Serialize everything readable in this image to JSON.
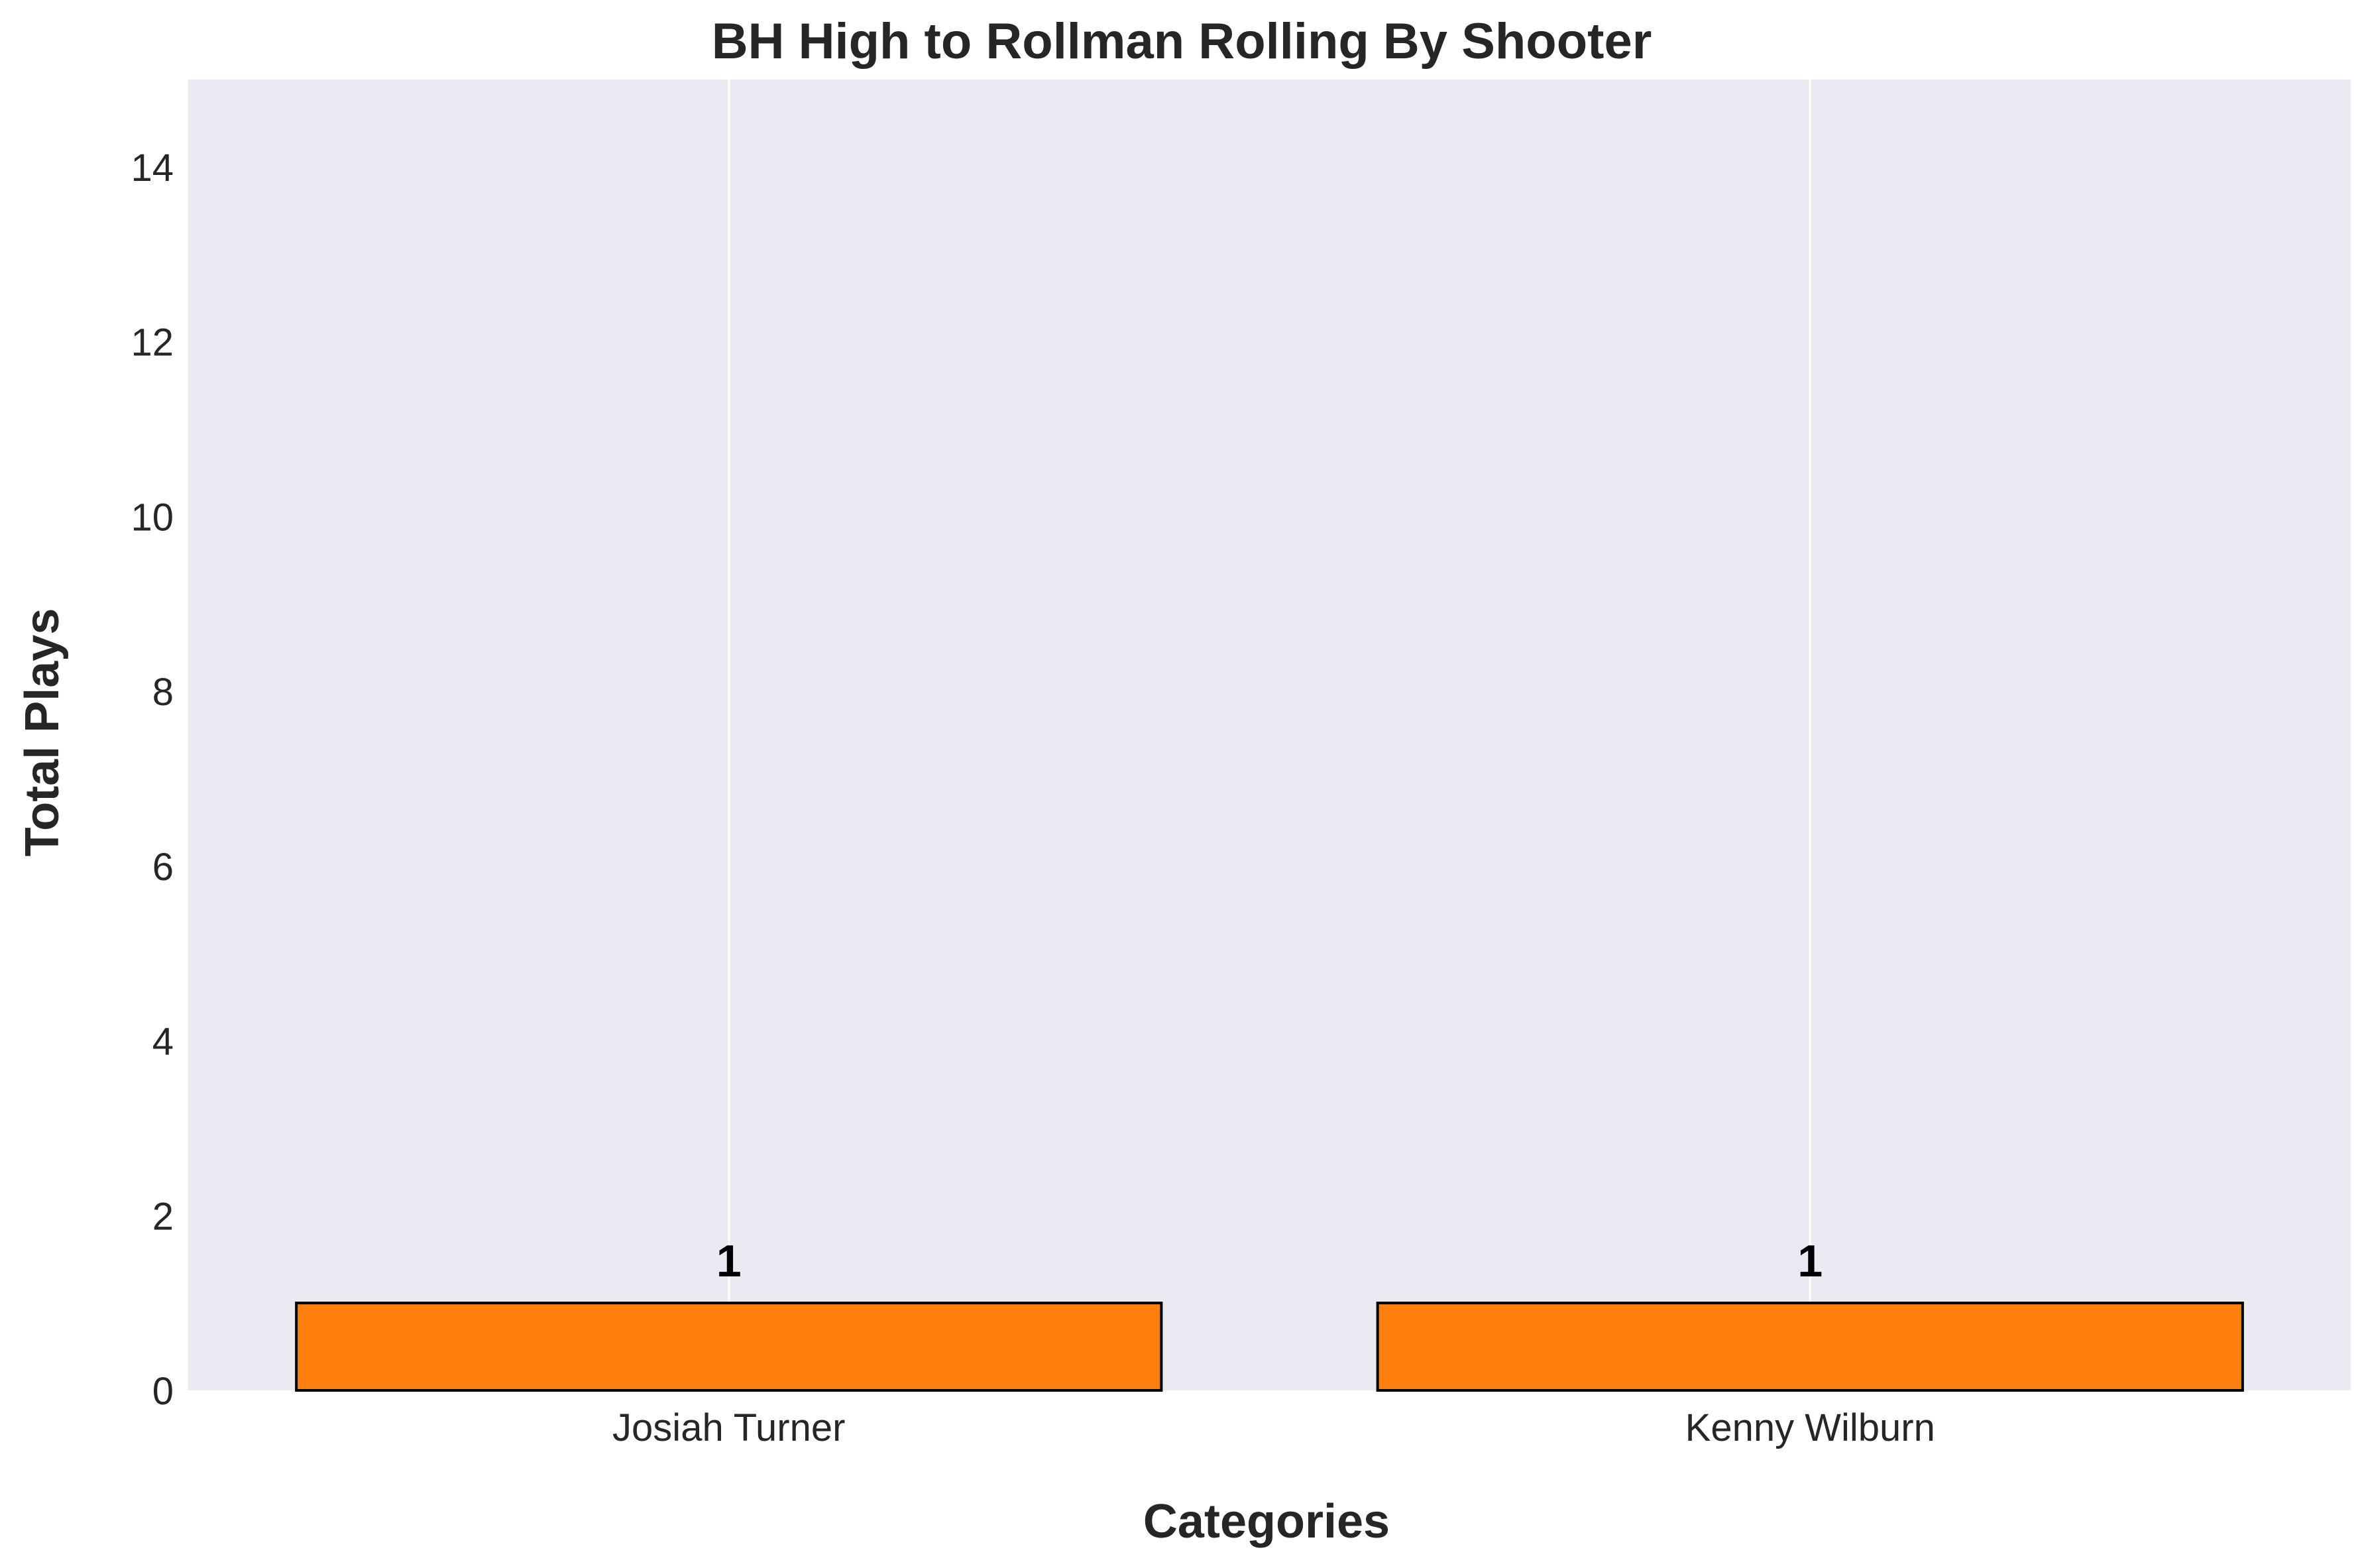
{
  "chart_data": {
    "type": "bar",
    "title": "BH High to Rollman Rolling By Shooter",
    "xlabel": "Categories",
    "ylabel": "Total Plays",
    "categories": [
      "Josiah Turner",
      "Kenny Wilburn"
    ],
    "values": [
      1,
      1
    ],
    "data_labels": [
      "1",
      "1"
    ],
    "ylim": [
      0,
      15
    ],
    "yticks": [
      0,
      2,
      4,
      6,
      8,
      10,
      12,
      14
    ],
    "grid": "vertical lines at category centers",
    "bar_color": "#ff7f0e",
    "bar_edge_color": "#000000",
    "plot_background": "#eaeaf2",
    "grid_color": "#ffffff"
  }
}
